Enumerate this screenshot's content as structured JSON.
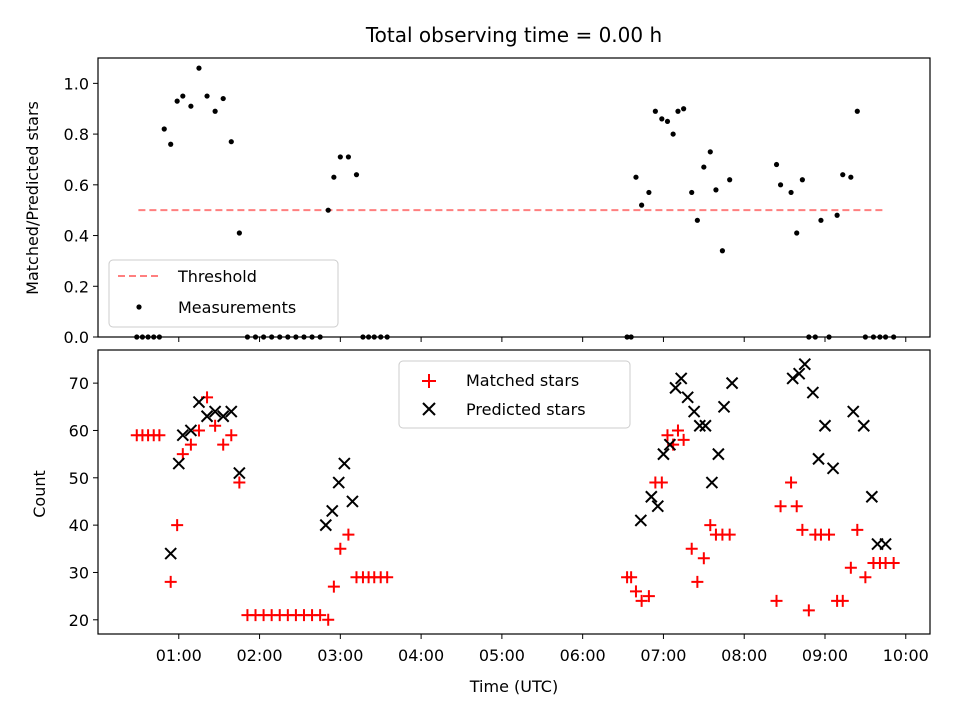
{
  "chart_data": [
    {
      "type": "scatter",
      "title": "Total observing time = 0.00 h",
      "xlabel": "",
      "ylabel": "Matched/Predicted stars",
      "ylim": [
        0,
        1.1
      ],
      "yticks": [
        "0.0",
        "0.2",
        "0.4",
        "0.6",
        "0.8",
        "1.0"
      ],
      "legend": {
        "placement": "lower-left",
        "entries": [
          "Threshold",
          "Measurements"
        ]
      },
      "threshold": {
        "name": "Threshold",
        "value": 0.5,
        "x_start": 0.5,
        "x_end": 9.75,
        "color": "#ff7f7f"
      },
      "series": [
        {
          "name": "Measurements",
          "color": "#000000",
          "x": [
            0.48,
            0.55,
            0.62,
            0.69,
            0.76,
            0.82,
            0.9,
            0.98,
            1.05,
            1.15,
            1.25,
            1.35,
            1.45,
            1.55,
            1.65,
            1.75,
            1.85,
            1.95,
            2.05,
            2.15,
            2.25,
            2.35,
            2.45,
            2.55,
            2.65,
            2.75,
            2.85,
            2.92,
            3.0,
            3.1,
            3.2,
            3.28,
            3.35,
            3.42,
            3.5,
            3.58,
            6.55,
            6.6,
            6.66,
            6.73,
            6.82,
            6.9,
            6.98,
            7.05,
            7.12,
            7.18,
            7.25,
            7.35,
            7.42,
            7.5,
            7.58,
            7.65,
            7.73,
            7.82,
            8.4,
            8.45,
            8.58,
            8.65,
            8.72,
            8.8,
            8.88,
            8.95,
            9.05,
            9.15,
            9.22,
            9.32,
            9.4,
            9.5,
            9.6,
            9.68,
            9.75,
            9.85
          ],
          "y": [
            0,
            0,
            0,
            0,
            0,
            0.82,
            0.76,
            0.93,
            0.95,
            0.91,
            1.06,
            0.95,
            0.89,
            0.94,
            0.77,
            0.41,
            0,
            0,
            0,
            0,
            0,
            0,
            0,
            0,
            0,
            0,
            0.5,
            0.63,
            0.71,
            0.71,
            0.64,
            0,
            0,
            0,
            0,
            0,
            0,
            0,
            0.63,
            0.52,
            0.57,
            0.89,
            0.86,
            0.85,
            0.8,
            0.89,
            0.9,
            0.57,
            0.46,
            0.67,
            0.73,
            0.58,
            0.34,
            0.62,
            0.68,
            0.6,
            0.57,
            0.41,
            0.62,
            0,
            0,
            0.46,
            0,
            0.48,
            0.64,
            0.63,
            0.89,
            0,
            0,
            0,
            0,
            0
          ]
        }
      ]
    },
    {
      "type": "scatter",
      "title": "",
      "xlabel": "Time (UTC)",
      "ylabel": "Count",
      "xlim": [
        0.0,
        10.3
      ],
      "ylim": [
        17,
        77
      ],
      "xtick_values": [
        1,
        2,
        3,
        4,
        5,
        6,
        7,
        8,
        9,
        10
      ],
      "xticks": [
        "01:00",
        "02:00",
        "03:00",
        "04:00",
        "05:00",
        "06:00",
        "07:00",
        "08:00",
        "09:00",
        "10:00"
      ],
      "yticks": [
        "20",
        "30",
        "40",
        "50",
        "60",
        "70"
      ],
      "ytick_values": [
        20,
        30,
        40,
        50,
        60,
        70
      ],
      "legend": {
        "placement": "upper-center",
        "entries": [
          "Matched stars",
          "Predicted stars"
        ]
      },
      "series": [
        {
          "name": "Matched stars",
          "marker": "plus",
          "color": "#ff0000",
          "x": [
            0.48,
            0.55,
            0.62,
            0.69,
            0.76,
            0.9,
            0.98,
            1.05,
            1.15,
            1.25,
            1.35,
            1.45,
            1.55,
            1.65,
            1.75,
            1.85,
            1.95,
            2.05,
            2.15,
            2.25,
            2.35,
            2.45,
            2.55,
            2.65,
            2.75,
            2.85,
            2.92,
            3.0,
            3.1,
            3.2,
            3.28,
            3.35,
            3.42,
            3.5,
            3.58,
            6.55,
            6.6,
            6.66,
            6.73,
            6.82,
            6.9,
            6.98,
            7.05,
            7.12,
            7.18,
            7.25,
            7.35,
            7.42,
            7.5,
            7.58,
            7.65,
            7.73,
            7.82,
            8.4,
            8.45,
            8.58,
            8.65,
            8.72,
            8.8,
            8.88,
            8.95,
            9.05,
            9.15,
            9.22,
            9.32,
            9.4,
            9.5,
            9.6,
            9.68,
            9.75,
            9.85
          ],
          "y": [
            59,
            59,
            59,
            59,
            59,
            28,
            40,
            55,
            57,
            60,
            67,
            61,
            57,
            59,
            49,
            21,
            21,
            21,
            21,
            21,
            21,
            21,
            21,
            21,
            21,
            20,
            27,
            35,
            38,
            29,
            29,
            29,
            29,
            29,
            29,
            29,
            29,
            26,
            24,
            25,
            49,
            49,
            59,
            57,
            60,
            58,
            35,
            28,
            33,
            40,
            38,
            38,
            38,
            24,
            44,
            49,
            44,
            39,
            22,
            38,
            38,
            38,
            24,
            24,
            31,
            39,
            29,
            32,
            32,
            32,
            32
          ]
        },
        {
          "name": "Predicted stars",
          "marker": "x",
          "color": "#000000",
          "x": [
            0.9,
            1.0,
            1.05,
            1.15,
            1.25,
            1.35,
            1.45,
            1.55,
            1.65,
            1.75,
            2.82,
            2.9,
            2.98,
            3.05,
            3.15,
            6.72,
            6.85,
            6.93,
            7.0,
            7.08,
            7.15,
            7.22,
            7.3,
            7.38,
            7.45,
            7.52,
            7.6,
            7.68,
            7.75,
            7.85,
            8.6,
            8.68,
            8.75,
            8.85,
            8.92,
            9.0,
            9.1,
            9.35,
            9.48,
            9.58,
            9.65,
            9.75
          ],
          "y": [
            34,
            53,
            59,
            60,
            66,
            63,
            64,
            63,
            64,
            51,
            40,
            43,
            49,
            53,
            45,
            41,
            46,
            44,
            55,
            57,
            69,
            71,
            67,
            64,
            61,
            61,
            49,
            55,
            65,
            70,
            71,
            72,
            74,
            68,
            54,
            61,
            52,
            64,
            61,
            46,
            36,
            36
          ]
        }
      ]
    }
  ]
}
